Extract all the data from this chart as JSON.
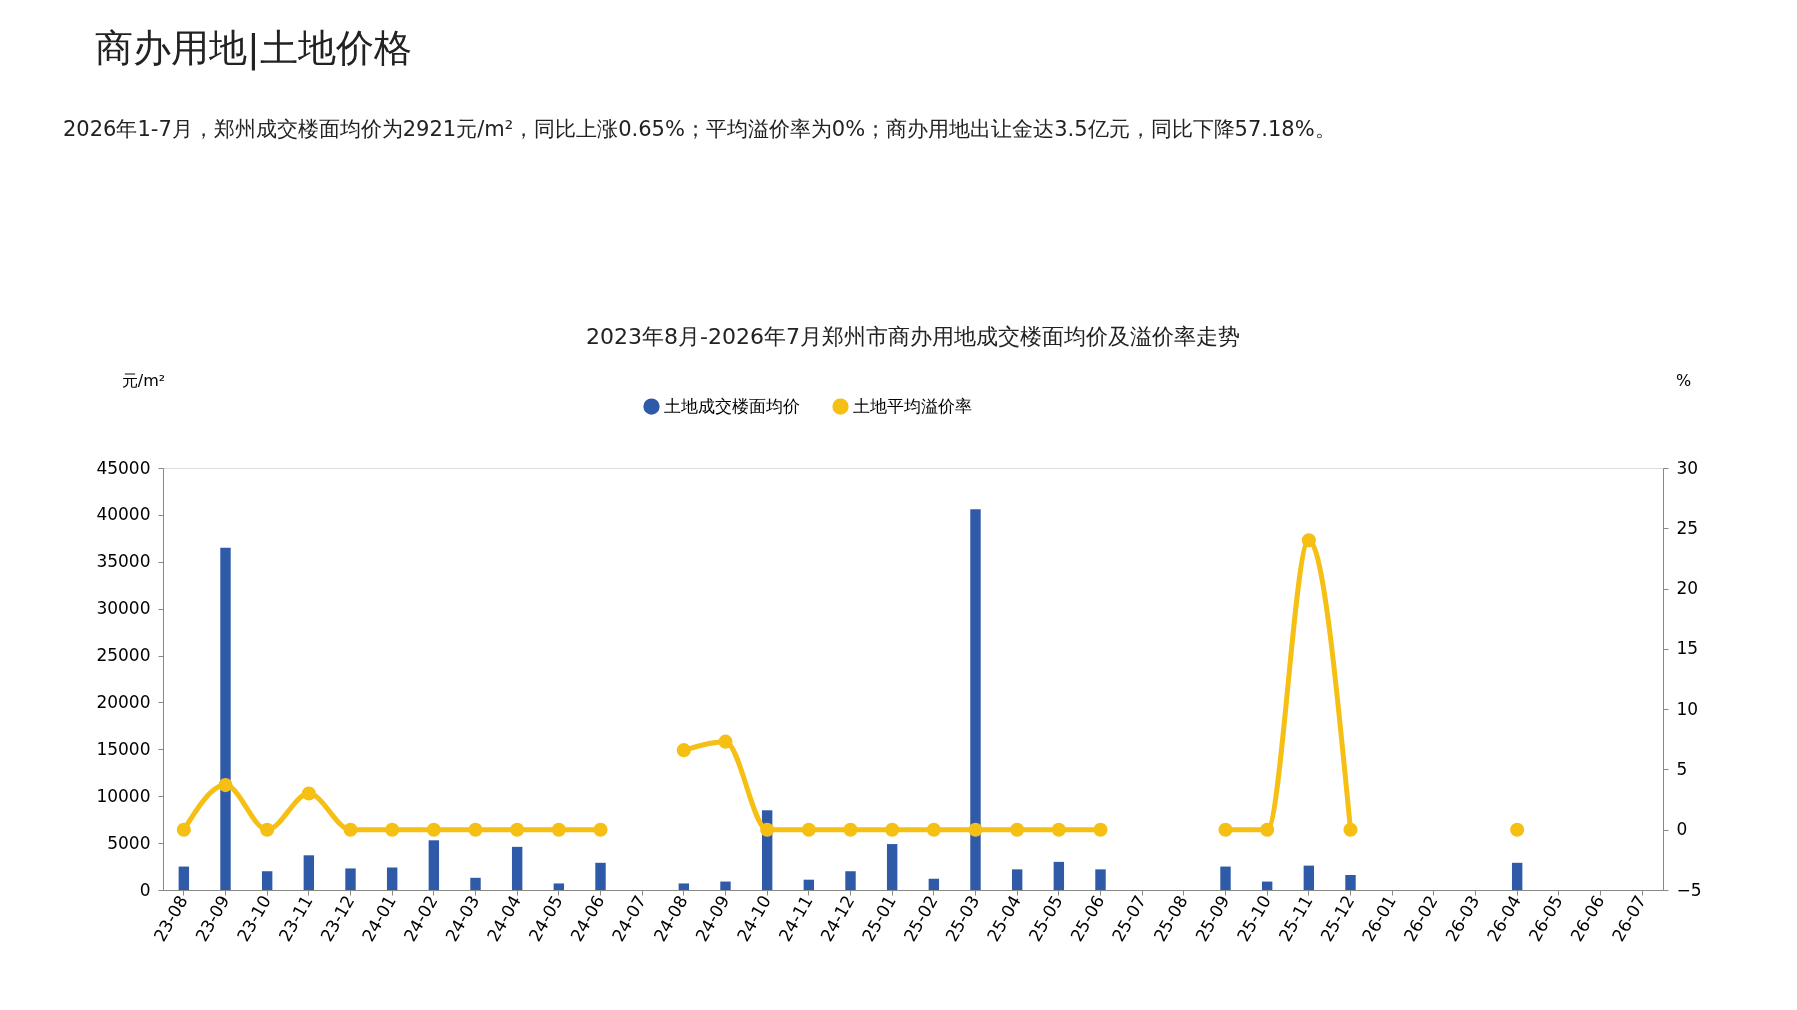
{
  "chart_data": {
    "type": "bar",
    "title": "2023年8月-2026年7月郑州市商办用地成交楼面均价及溢价率走势",
    "annotations": [
      "商办用地|土地价格",
      "2026年1-7月，郑州成交楼面均价为2921元/m²，同比上涨0.65%；平均溢价率为0%；商办用地出让金达3.5亿元，同比下降57.18%。"
    ],
    "ylabel": "元/m²",
    "y2label": "%",
    "categories": [
      "23-08",
      "23-09",
      "23-10",
      "23-11",
      "23-12",
      "24-01",
      "24-02",
      "24-03",
      "24-04",
      "24-05",
      "24-06",
      "24-07",
      "24-08",
      "24-09",
      "24-10",
      "24-11",
      "24-12",
      "25-01",
      "25-02",
      "25-03",
      "25-04",
      "25-05",
      "25-06",
      "25-07",
      "25-08",
      "25-09",
      "25-10",
      "25-11",
      "25-12",
      "26-01",
      "26-02",
      "26-03",
      "26-04",
      "26-05",
      "26-06",
      "26-07"
    ],
    "series": [
      {
        "name": "土地成交楼面均价",
        "color": "#2e5aa8",
        "values": [
          2500,
          36500,
          2000,
          3700,
          2300,
          2400,
          5300,
          1300,
          4600,
          700,
          2900,
          null,
          700,
          900,
          8500,
          1100,
          2000,
          4900,
          1200,
          40600,
          2200,
          3000,
          2200,
          null,
          null,
          2500,
          900,
          2600,
          1600,
          null,
          null,
          null,
          2900,
          null,
          null,
          null
        ]
      },
      {
        "name": "土地平均溢价率",
        "type": "line",
        "axis": "y2",
        "color": "#f5bf14",
        "values": [
          0,
          3.7,
          0,
          3.0,
          0,
          0,
          0,
          0,
          0,
          0,
          0,
          null,
          6.6,
          7.3,
          0,
          0,
          0,
          0,
          0,
          0,
          0,
          0,
          0,
          null,
          null,
          0,
          0,
          24.0,
          0,
          null,
          null,
          null,
          0,
          null,
          null,
          null
        ]
      }
    ],
    "ylim": [
      0,
      45000
    ],
    "yticks": [
      0,
      5000,
      10000,
      15000,
      20000,
      25000,
      30000,
      35000,
      40000,
      45000
    ],
    "y2lim": [
      -5,
      30
    ],
    "y2ticks": [
      -5,
      0,
      5,
      10,
      15,
      20,
      25,
      30
    ],
    "grid": false,
    "legend": "top",
    "marker": "circle",
    "line_style": "solid"
  }
}
